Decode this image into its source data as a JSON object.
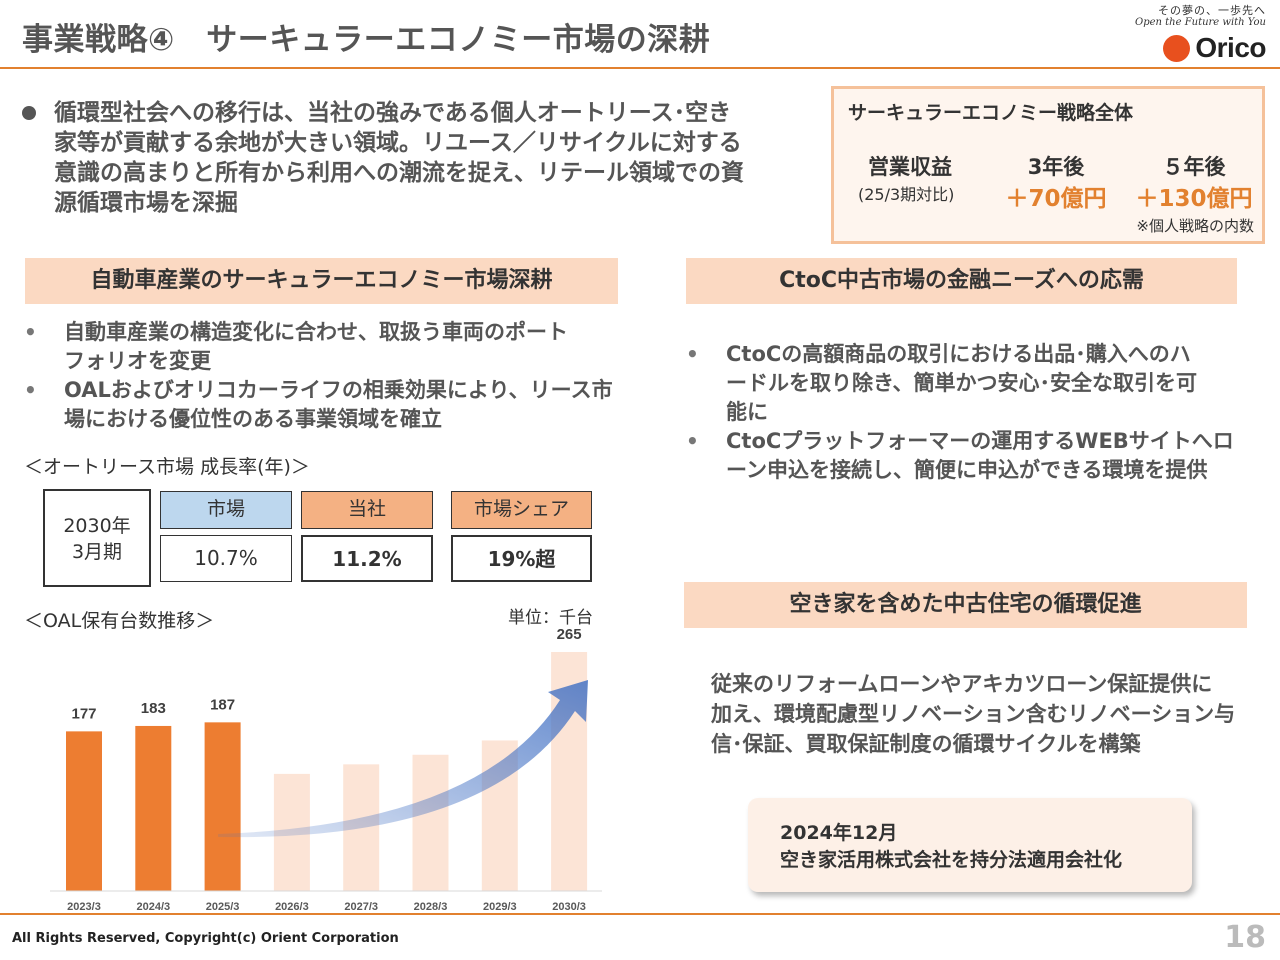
{
  "header": {
    "title": "事業戦略④　サーキュラーエコノミー市場の深耕",
    "logo_tagline_jp": "その夢の、一歩先へ",
    "logo_tagline_en": "Open the Future with You",
    "logo_text": "Orico"
  },
  "intro": {
    "lines": [
      "循環型社会への移行は、当社の強みである個人オートリース･空き",
      "家等が貢献する余地が大きい領域。リユース／リサイクルに対する",
      "意識の高まりと所有から利用への潮流を捉え、リテール領域での資",
      "源循環市場を深掘"
    ]
  },
  "summary": {
    "title": "サーキュラーエコノミー戦略全体",
    "label": "営業収益",
    "sublabel": "(25/3期対比)",
    "col1_header": "3年後",
    "col1_value": "＋70億円",
    "col2_header": "５年後",
    "col2_value": "＋130億円",
    "note": "※個人戦略の内数"
  },
  "auto": {
    "heading": "自動車産業のサーキュラーエコノミー市場深耕",
    "bullets": [
      {
        "l1": "自動車産業の構造変化に合わせ、取扱う車両のポート",
        "l2": "フォリオを変更"
      },
      {
        "l1": "OALおよびオリコカーライフの相乗効果により、リース市",
        "l2": "場における優位性のある事業領域を確立"
      }
    ],
    "growth_heading": "＜オートリース市場  成長率(年)＞",
    "period_l1": "2030年",
    "period_l2": "3月期",
    "headers": [
      "市場",
      "当社",
      "市場シェア"
    ],
    "values": [
      "10.7%",
      "11.2%",
      "19%超"
    ],
    "oal_heading": "＜OAL保有台数推移＞",
    "unit": "単位：千台"
  },
  "chart_data": {
    "type": "bar",
    "title": "＜OAL保有台数推移＞",
    "unit": "単位：千台",
    "categories": [
      "2023/3",
      "2024/3",
      "2025/3",
      "2026/3",
      "2027/3",
      "2028/3",
      "2029/3",
      "2030/3"
    ],
    "values": [
      177,
      183,
      187,
      null,
      null,
      null,
      null,
      265
    ],
    "labeled": [
      true,
      true,
      true,
      false,
      false,
      false,
      false,
      true
    ],
    "projected_relative": [
      null,
      null,
      null,
      0.49,
      0.53,
      0.57,
      0.63,
      null
    ],
    "actual_color": "#ed7d31",
    "projected_color": "#fce4d6",
    "arrow_color": "#4472c4",
    "grid": false
  },
  "ctoc": {
    "heading": "CtoC中古市場の金融ニーズへの応需",
    "bullets": [
      {
        "l1": "CtoCの高額商品の取引における出品･購入へのハ",
        "l2": "ードルを取り除き、簡単かつ安心･安全な取引を可",
        "l3": "能に"
      },
      {
        "l1": "CtoCプラットフォーマーの運用するWEBサイトへロ",
        "l2": "ーン申込を接続し、簡便に申込ができる環境を提供"
      }
    ]
  },
  "housing": {
    "heading": "空き家を含めた中古住宅の循環促進",
    "lines": [
      "従来のリフォームローンやアキカツローン保証提供に",
      "加え、環境配慮型リノベーション含むリノベーション与",
      "信･保証、買取保証制度の循環サイクルを構築"
    ],
    "event_l1": "2024年12月",
    "event_l2": "空き家活用株式会社を持分法適用会社化"
  },
  "footer": {
    "copyright": "All Rights Reserved, Copyright(c) Orient Corporation",
    "page_number": "18"
  },
  "colors": {
    "accent": "#e2812f",
    "section_band": "#fbd9c2",
    "market_header": "#bdd7ee",
    "company_header": "#f4b183"
  }
}
